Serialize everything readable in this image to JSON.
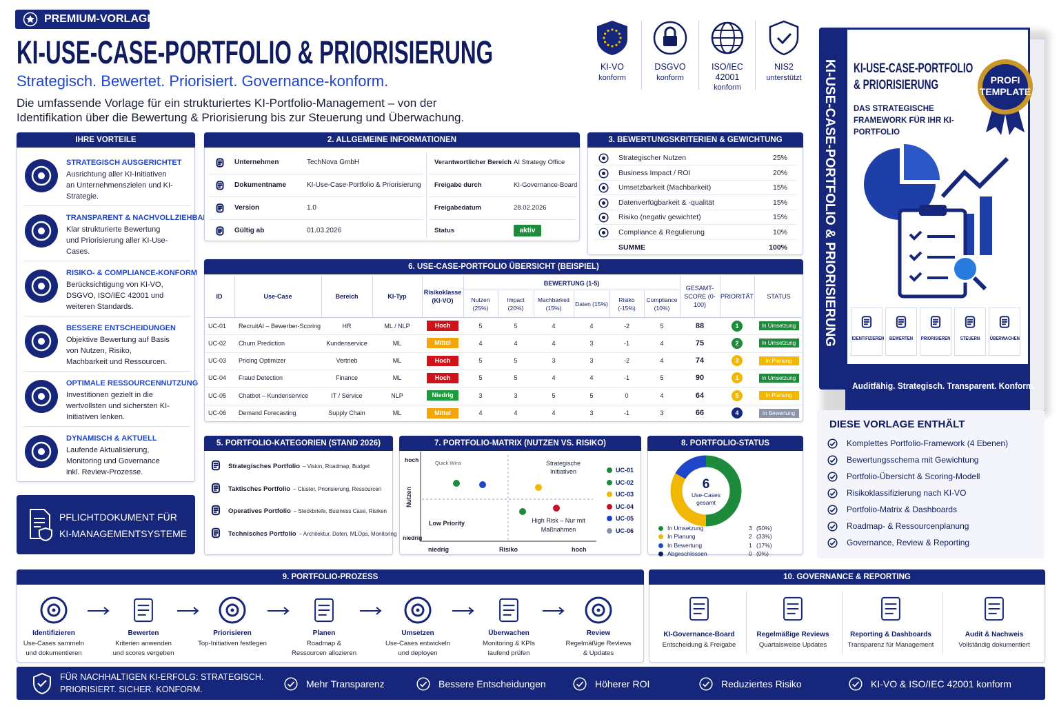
{
  "header": {
    "badge": "PREMIUM-VORLAGE",
    "title": "KI-USE-CASE-PORTFOLIO & PRIORISIERUNG",
    "subtitle": "Strategisch. Bewertet. Priorisiert. Governance-konform.",
    "description": "Die umfassende Vorlage für ein strukturiertes KI-Portfolio-Management – von der Identifikation über die Bewertung & Priorisierung bis zur Steuerung und Überwachung."
  },
  "certifications": [
    {
      "title": "KI-VO",
      "text": "konform"
    },
    {
      "title": "DSGVO",
      "text": "konform"
    },
    {
      "title": "ISO/IEC 42001",
      "text": "konform"
    },
    {
      "title": "NIS2",
      "text": "unterstützt"
    }
  ],
  "advantages": {
    "title": "IHRE VORTEILE",
    "items": [
      {
        "title": "STRATEGISCH AUSGERICHTET",
        "text": "Ausrichtung aller KI-Initiativen an Unternehmenszielen und KI-Strategie."
      },
      {
        "title": "TRANSPARENT & NACHVOLLZIEHBAR",
        "text": "Klar strukturierte Bewertung und Priorisierung aller KI-Use-Cases."
      },
      {
        "title": "RISIKO- & COMPLIANCE-KONFORM",
        "text": "Berücksichtigung von KI-VO, DSGVO, ISO/IEC 42001 und weiteren Standards."
      },
      {
        "title": "BESSERE ENTSCHEIDUNGEN",
        "text": "Objektive Bewertung auf Basis von Nutzen, Risiko, Machbarkeit und Ressourcen."
      },
      {
        "title": "OPTIMALE RESSOURCENNUTZUNG",
        "text": "Investitionen gezielt in die wertvollsten und sichersten KI-Initiativen lenken."
      },
      {
        "title": "DYNAMISCH & AKTUELL",
        "text": "Laufende Aktualisierung, Monitoring und Governance inkl. Review-Prozesse."
      }
    ]
  },
  "mandatory": "PFLICHTDOKUMENT FÜR KI-MANAGEMENTSYSTEME",
  "general_info": {
    "title": "2. ALLGEMEINE INFORMATIONEN",
    "rows": [
      [
        "Unternehmen",
        "TechNova GmbH",
        "Verantwortlicher Bereich",
        "AI Strategy Office"
      ],
      [
        "Dokumentname",
        "KI-Use-Case-Portfolio & Priorisierung",
        "Freigabe durch",
        "KI-Governance-Board"
      ],
      [
        "Version",
        "1.0",
        "Freigabedatum",
        "28.02.2026"
      ],
      [
        "Gültig ab",
        "01.03.2026",
        "Status",
        "aktiv"
      ]
    ]
  },
  "criteria": {
    "title": "3. BEWERTUNGSKRITERIEN & GEWICHTUNG",
    "rows": [
      [
        "Strategischer Nutzen",
        "25%"
      ],
      [
        "Business Impact / ROI",
        "20%"
      ],
      [
        "Umsetzbarkeit (Machbarkeit)",
        "15%"
      ],
      [
        "Datenverfügbarkeit & -qualität",
        "15%"
      ],
      [
        "Risiko (negativ gewichtet)",
        "15%"
      ],
      [
        "Compliance & Regulierung",
        "10%"
      ]
    ],
    "sum": [
      "SUMME",
      "100%"
    ]
  },
  "portfolio": {
    "title": "6. USE-CASE-PORTFOLIO ÜBERSICHT (BEISPIEL)",
    "group_header": "BEWERTUNG (1-5)",
    "headers": [
      "ID",
      "Use-Case",
      "Bereich",
      "KI-Typ",
      "Risikoklasse (KI-VO)",
      "Nutzen (25%)",
      "Impact (20%)",
      "Machbarkeit (15%)",
      "Daten (15%)",
      "Risiko (-15%)",
      "Compliance (10%)",
      "GESAMT-SCORE (0-100)",
      "PRIORITÄT",
      "STATUS"
    ],
    "rows": [
      [
        "UC-01",
        "RecruitAI – Bewerber-Scoring",
        "HR",
        "ML / NLP",
        "Hoch",
        "5",
        "5",
        "4",
        "4",
        "-2",
        "5",
        "88",
        "1",
        "In Umsetzung"
      ],
      [
        "UC-02",
        "Churn Prediction",
        "Kundenservice",
        "ML",
        "Mittel",
        "4",
        "4",
        "4",
        "3",
        "-1",
        "4",
        "75",
        "2",
        "In Umsetzung"
      ],
      [
        "UC-03",
        "Pricing Optimizer",
        "Vertrieb",
        "ML",
        "Hoch",
        "5",
        "5",
        "3",
        "3",
        "-2",
        "4",
        "74",
        "3",
        "In Planung"
      ],
      [
        "UC-04",
        "Fraud Detection",
        "Finance",
        "ML",
        "Hoch",
        "5",
        "5",
        "4",
        "4",
        "-1",
        "5",
        "90",
        "1",
        "In Umsetzung"
      ],
      [
        "UC-05",
        "Chatbot – Kundenservice",
        "IT / Service",
        "NLP",
        "Niedrig",
        "3",
        "3",
        "5",
        "5",
        "0",
        "4",
        "64",
        "5",
        "In Planung"
      ],
      [
        "UC-06",
        "Demand Forecasting",
        "Supply Chain",
        "ML",
        "Mittel",
        "4",
        "4",
        "4",
        "3",
        "-1",
        "3",
        "66",
        "4",
        "In Bewertung"
      ]
    ],
    "row_styles": [
      {
        "risk_color": "#d0121b",
        "priority_color": "#1e8a3c",
        "status_color": "#1e8a3c"
      },
      {
        "risk_color": "#f2a60c",
        "priority_color": "#1e8a3c",
        "status_color": "#1e8a3c"
      },
      {
        "risk_color": "#d0121b",
        "priority_color": "#f2b705",
        "status_color": "#f2b705"
      },
      {
        "risk_color": "#d0121b",
        "priority_color": "#f2b705",
        "status_color": "#1e8a3c"
      },
      {
        "risk_color": "#1e9a3c",
        "priority_color": "#f2b705",
        "status_color": "#f2b705"
      },
      {
        "risk_color": "#f2a60c",
        "priority_color": "#16267a",
        "status_color": "#8a93a8"
      }
    ]
  },
  "categories": {
    "title": "5. PORTFOLIO-KATEGORIEN (STAND 2026)",
    "items": [
      {
        "name": "Strategisches Portfolio",
        "desc": "– Vision, Roadmap, Budget"
      },
      {
        "name": "Taktisches Portfolio",
        "desc": "– Cluster, Priorisierung, Ressourcen"
      },
      {
        "name": "Operatives Portfolio",
        "desc": "– Steckbriefe, Business Case, Risiken"
      },
      {
        "name": "Technisches Portfolio",
        "desc": "– Architektur, Daten, MLOps, Monitoring"
      }
    ]
  },
  "matrix": {
    "title": "7. PORTFOLIO-MATRIX (NUTZEN VS. RISIKO)",
    "y_label": "Nutzen",
    "x_label": "Risiko",
    "y_high": "hoch",
    "y_low": "niedrig",
    "x_low": "niedrig",
    "x_high": "hoch",
    "quadrants": [
      "Quick Wins",
      "Strategische Initiativen",
      "Low Priority",
      "High Risk – Nur mit Maßnahmen"
    ],
    "legend": [
      {
        "name": "UC-01",
        "color": "#1e8a3c"
      },
      {
        "name": "UC-02",
        "color": "#1e8a3c"
      },
      {
        "name": "UC-03",
        "color": "#f2b705"
      },
      {
        "name": "UC-04",
        "color": "#c8102e"
      },
      {
        "name": "UC-05",
        "color": "#1f45c9"
      },
      {
        "name": "UC-06",
        "color": "#8a93a8"
      }
    ]
  },
  "status": {
    "title": "8. PORTFOLIO-STATUS",
    "total": 6,
    "total_label": "Use-Cases gesamt",
    "items": [
      {
        "name": "In Umsetzung",
        "color": "#1e8a3c",
        "count": 3,
        "percent": "(50%)"
      },
      {
        "name": "In Planung",
        "color": "#f2b705",
        "count": 2,
        "percent": "(33%)"
      },
      {
        "name": "In Bewertung",
        "color": "#1f45c9",
        "count": 1,
        "percent": "(17%)"
      },
      {
        "name": "Abgeschlossen",
        "color": "#101c5e",
        "count": 0,
        "percent": "(0%)"
      }
    ]
  },
  "process": {
    "title": "9. PORTFOLIO-PROZESS",
    "steps": [
      {
        "title": "Identifizieren",
        "text": "Use-Cases sammeln und dokumentieren"
      },
      {
        "title": "Bewerten",
        "text": "Kriterien anwenden und scores vergeben"
      },
      {
        "title": "Priorisieren",
        "text": "Top-Initiativen festlegen"
      },
      {
        "title": "Planen",
        "text": "Roadmap & Ressourcen allozieren"
      },
      {
        "title": "Umsetzen",
        "text": "Use-Cases entwickeln und deployen"
      },
      {
        "title": "Überwachen",
        "text": "Monitoring & KPIs laufend prüfen"
      },
      {
        "title": "Review",
        "text": "Regelmäßige Reviews & Updates"
      }
    ]
  },
  "governance": {
    "title": "10. GOVERNANCE & REPORTING",
    "items": [
      {
        "title": "KI-Governance-Board",
        "text": "Entscheidung & Freigabe"
      },
      {
        "title": "Regelmäßige Reviews",
        "text": "Quartalsweise Updates"
      },
      {
        "title": "Reporting & Dashboards",
        "text": "Transparenz für Management"
      },
      {
        "title": "Audit & Nachweis",
        "text": "Vollständig dokumentiert"
      }
    ]
  },
  "footer": {
    "lead": "FÜR NACHHALTIGEN KI-ERFOLG: STRATEGISCH. PRIORISIERT. SICHER. KONFORM.",
    "items": [
      "Mehr Transparenz",
      "Bessere Entscheidungen",
      "Höherer ROI",
      "Reduziertes Risiko",
      "KI-VO & ISO/IEC 42001 konform"
    ]
  },
  "book": {
    "spine": "KI-USE-CASE-PORTFOLIO & PRIORISIERUNG",
    "title": "KI-USE-CASE-PORTFOLIO & PRIORISIERUNG",
    "subtitle": "DAS STRATEGISCHE FRAMEWORK FÜR IHR KI-PORTFOLIO",
    "badge": "PROFI TEMPLATE",
    "steps": [
      "IDENTIFIZIEREN",
      "BEWERTEN",
      "PRIORISIEREN",
      "STEUERN",
      "ÜBERWACHEN"
    ],
    "slogan": "Auditfähig. Strategisch. Transparent. Konform."
  },
  "contents": {
    "title": "DIESE VORLAGE ENTHÄLT",
    "items": [
      "Komplettes Portfolio-Framework (4 Ebenen)",
      "Bewertungsschema mit Gewichtung",
      "Portfolio-Übersicht & Scoring-Modell",
      "Risikoklassifizierung nach KI-VO",
      "Portfolio-Matrix & Dashboards",
      "Roadmap- & Ressourcenplanung",
      "Governance, Review & Reporting"
    ]
  }
}
